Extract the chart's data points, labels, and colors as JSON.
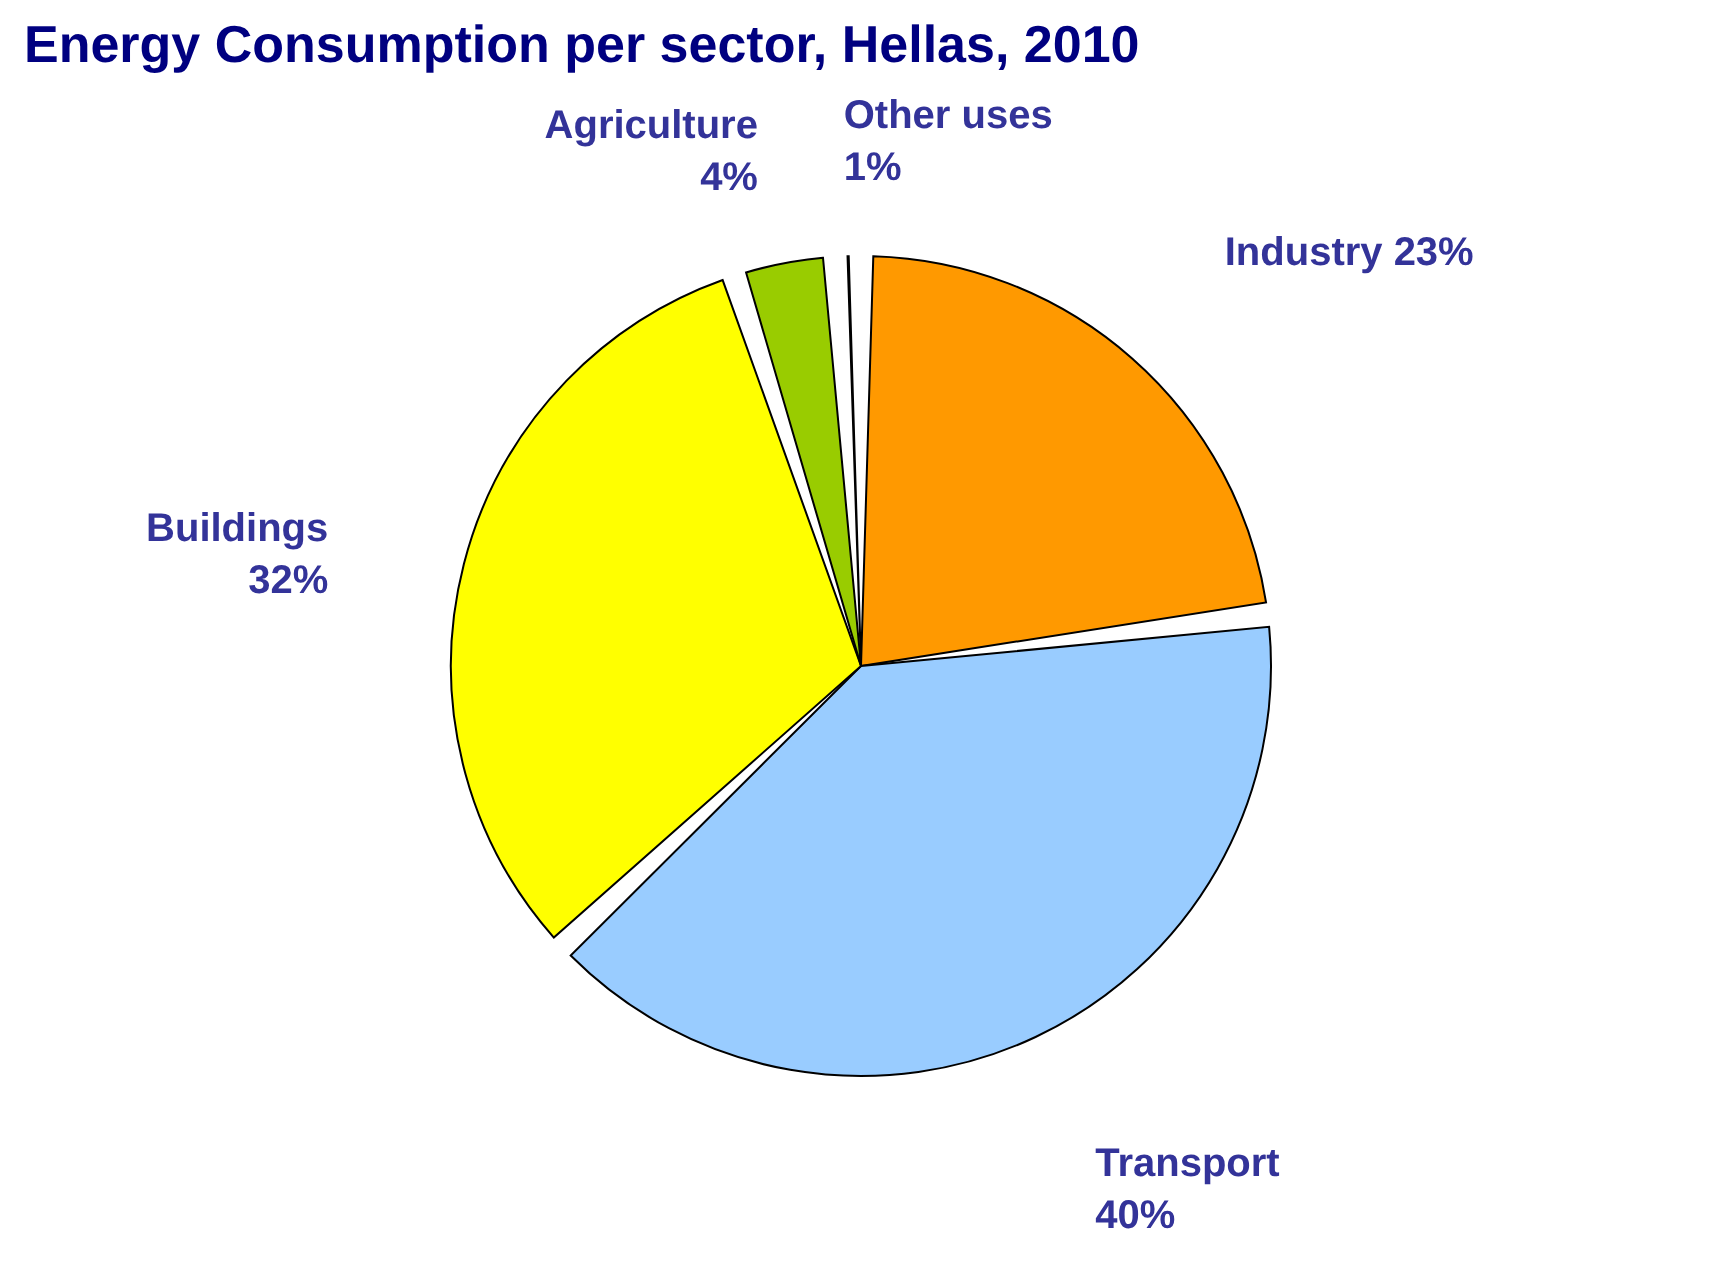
{
  "chart_data": {
    "type": "pie",
    "title": "Energy Consumption per sector, Hellas, 2010",
    "categories": [
      "Industry",
      "Transport",
      "Buildings",
      "Agriculture",
      "Other uses"
    ],
    "values": [
      23,
      40,
      32,
      4,
      1
    ],
    "value_labels": [
      "23%",
      "40%",
      "32%",
      "4%",
      "1%"
    ],
    "colors": [
      "#ff9900",
      "#99ccff",
      "#ffff00",
      "#99cc00",
      "#c0c0c0"
    ],
    "legend": false
  }
}
